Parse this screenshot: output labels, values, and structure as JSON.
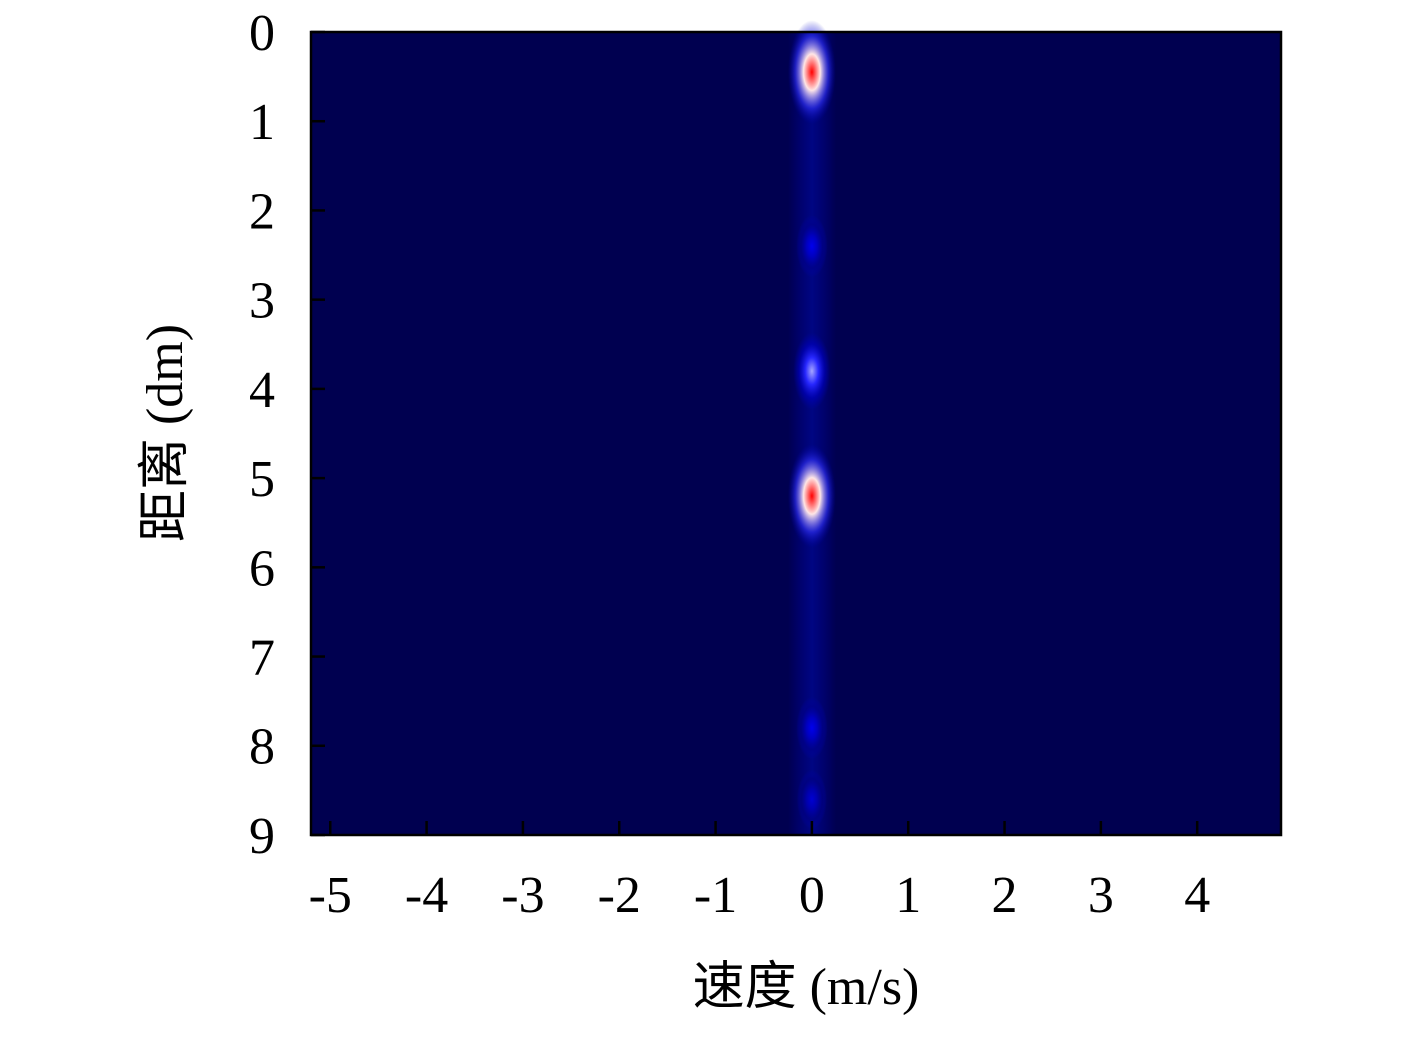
{
  "chart_data": {
    "type": "heatmap",
    "xlabel": "速度 (m/s)",
    "ylabel": "距离 (dm)",
    "x": [
      0,
      0,
      0,
      0,
      0,
      0
    ],
    "y": [
      0.45,
      2.4,
      3.8,
      5.2,
      7.8,
      8.6
    ],
    "values": [
      1,
      0.3,
      0.55,
      1,
      0.3,
      0.25
    ],
    "colormap": [
      "#000050",
      "#0000ff",
      "#ffffff",
      "#ff0000"
    ],
    "xlim": [
      -5.2,
      4.87
    ],
    "xticks": [
      -5,
      -4,
      -3,
      -2,
      -1,
      0,
      1,
      2,
      3,
      4
    ],
    "ylim": [
      9,
      0
    ],
    "yticks": [
      0,
      1,
      2,
      3,
      4,
      5,
      6,
      7,
      8,
      9
    ]
  }
}
